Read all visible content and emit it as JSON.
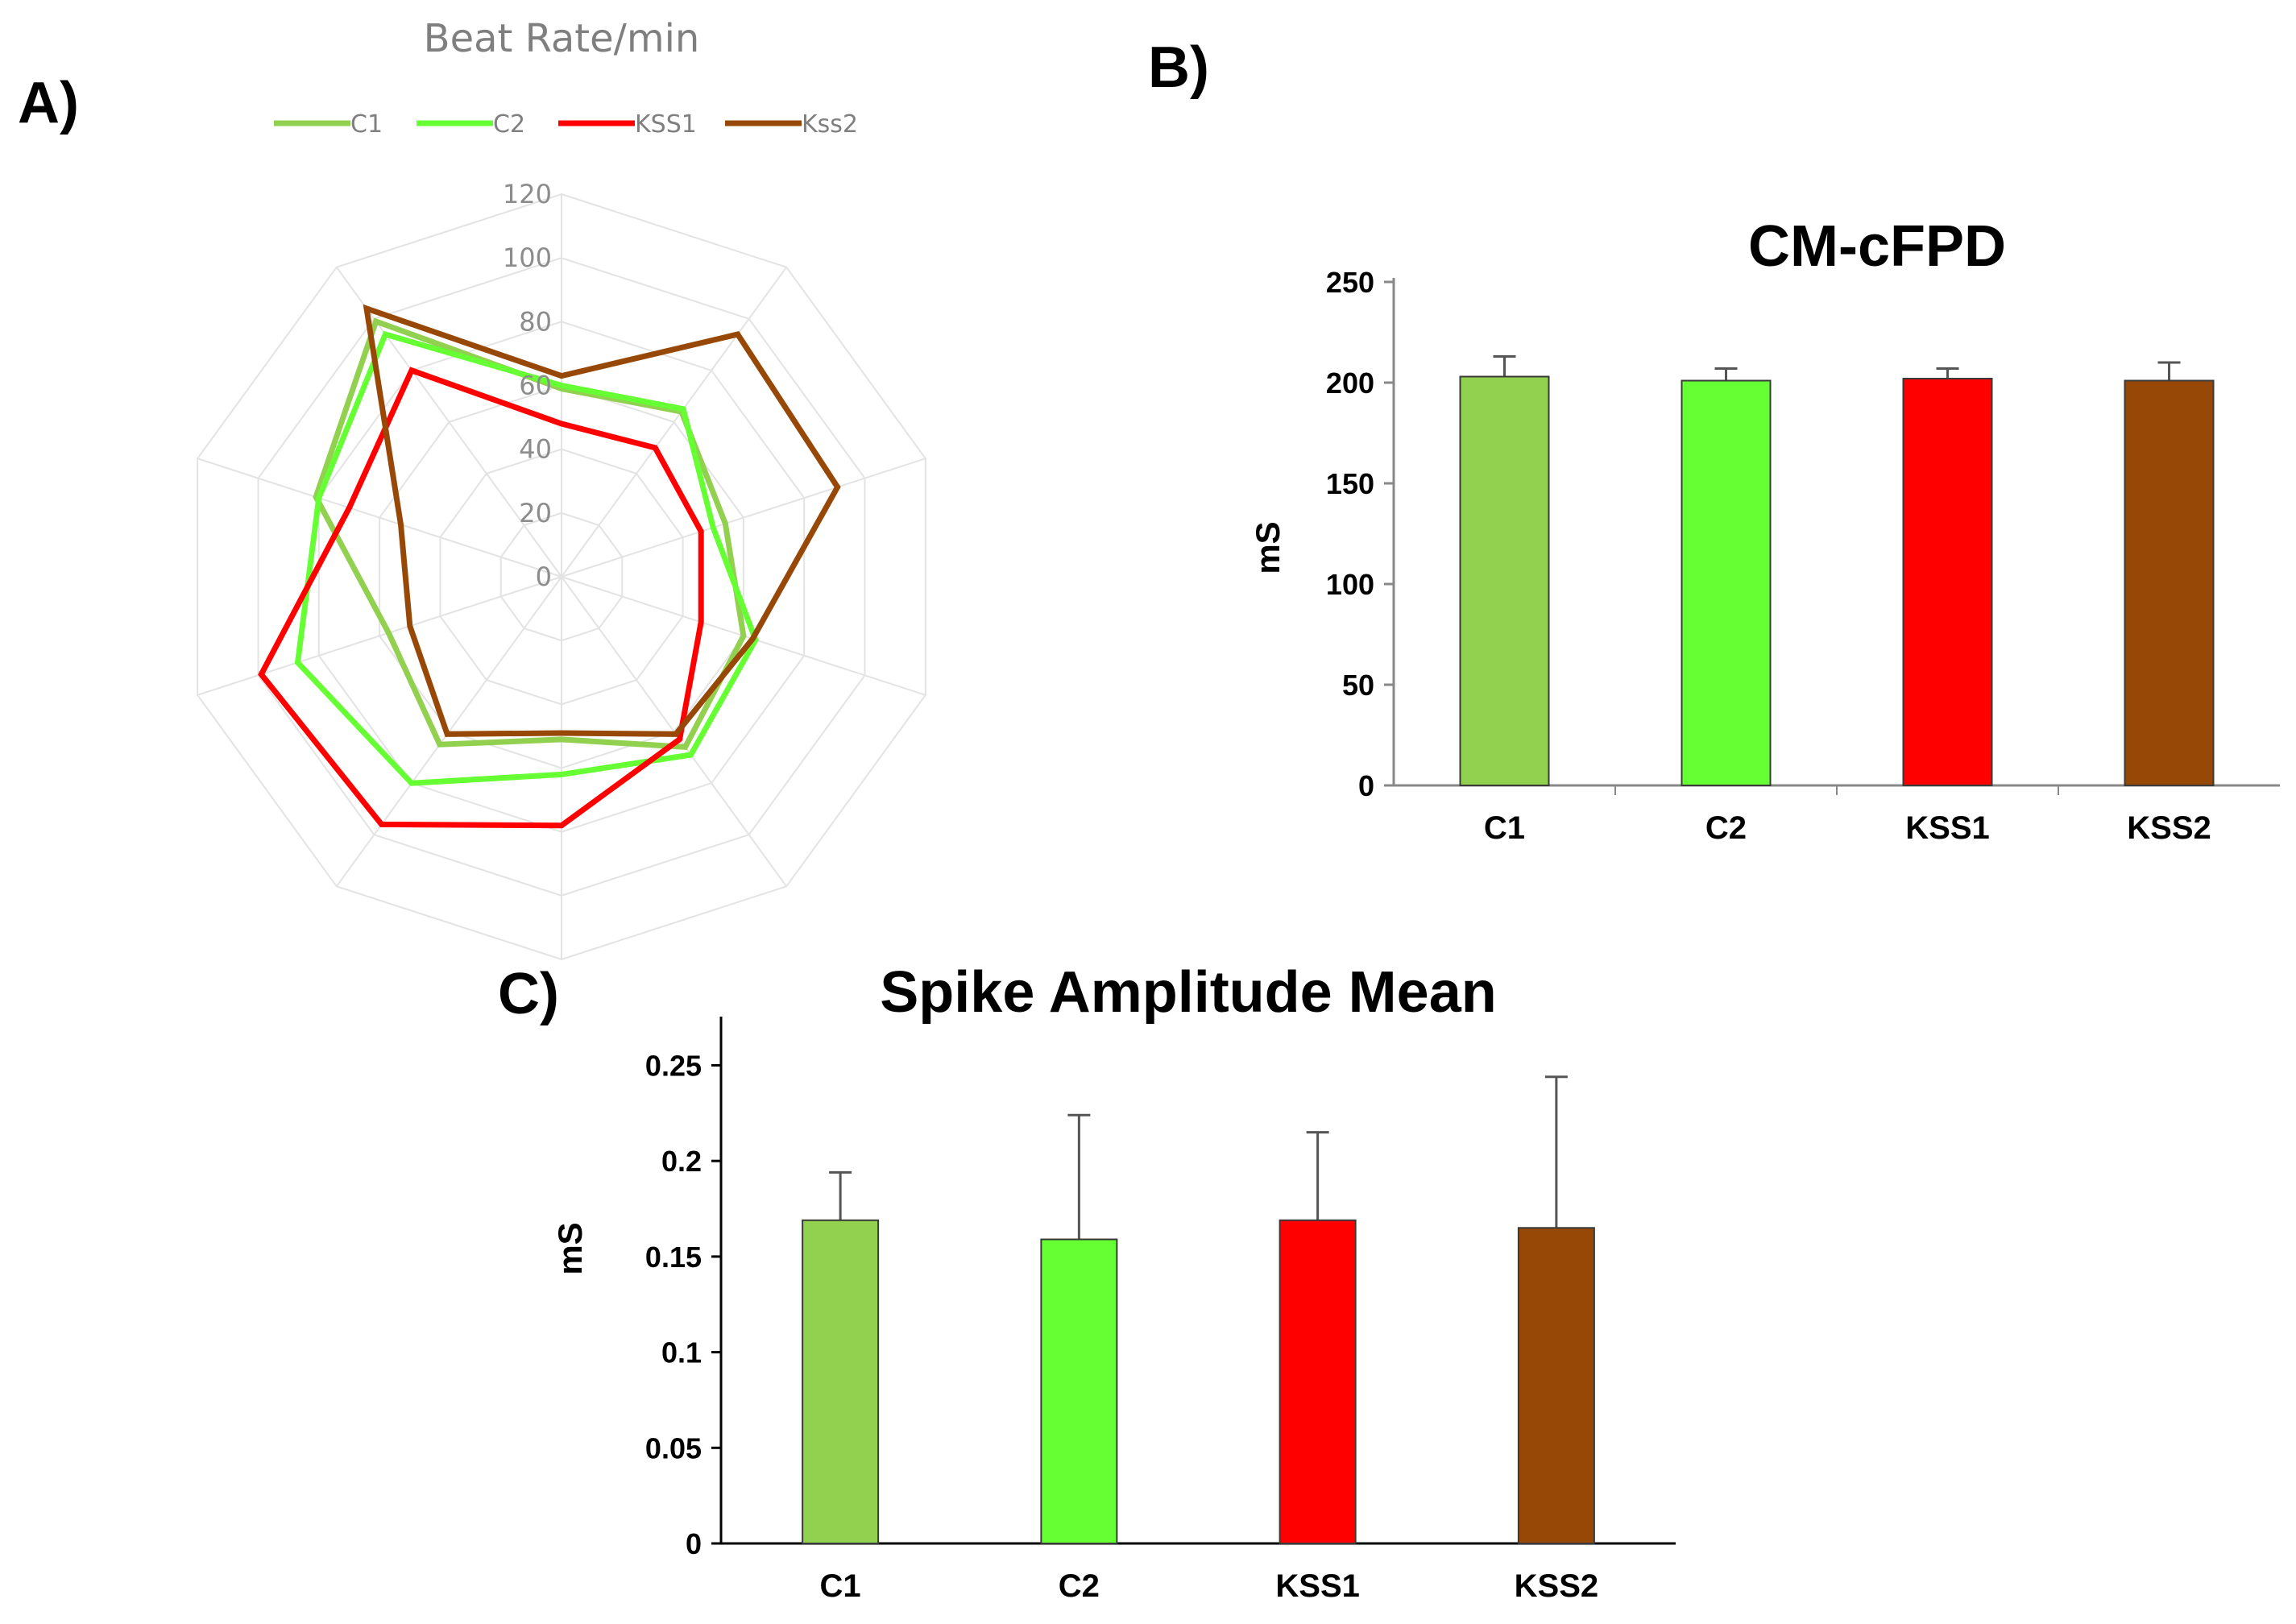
{
  "panels": {
    "a": "A)",
    "b": "B)",
    "c": "C)"
  },
  "chart_data": [
    {
      "type": "radar",
      "title": "Beat Rate/min",
      "rlim": [
        0,
        120
      ],
      "ticks": [
        0,
        20,
        40,
        60,
        80,
        100,
        120
      ],
      "tick_labels": [
        "0",
        "20",
        "40",
        "60",
        "80",
        "100",
        "120"
      ],
      "n_axes": 10,
      "legend": "top",
      "series": [
        {
          "name": "C1",
          "color": "#92D050",
          "values": [
            59,
            64,
            54,
            60,
            66,
            51,
            65,
            57,
            81,
            99
          ]
        },
        {
          "name": "C2",
          "color": "#66FF33",
          "values": [
            60,
            65,
            50,
            64,
            69,
            62,
            80,
            87,
            80,
            94
          ]
        },
        {
          "name": "KSS1",
          "color": "#FF0000",
          "values": [
            48,
            50,
            46,
            46,
            63,
            78,
            96,
            99,
            70,
            80
          ]
        },
        {
          "name": "Kss2",
          "color": "#974806",
          "values": [
            63,
            94,
            91,
            63,
            61,
            49,
            61,
            50,
            53,
            104
          ]
        }
      ]
    },
    {
      "type": "bar",
      "title": "CM-cFPD",
      "ylabel": "mS",
      "xlabel": "",
      "ylim": [
        0,
        250
      ],
      "yticks": [
        0,
        50,
        100,
        150,
        200,
        250
      ],
      "ytick_labels": [
        "0",
        "50",
        "100",
        "150",
        "200",
        "250"
      ],
      "categories": [
        "C1",
        "C2",
        "KSS1",
        "KSS2"
      ],
      "values": [
        203,
        201,
        202,
        201
      ],
      "errors": [
        10,
        6,
        5,
        9
      ],
      "colors": [
        "#92D050",
        "#66FF33",
        "#FF0000",
        "#974806"
      ]
    },
    {
      "type": "bar",
      "title": "Spike Amplitude Mean",
      "ylabel": "mS",
      "xlabel": "",
      "ylim": [
        0,
        0.27
      ],
      "yticks": [
        0,
        0.05,
        0.1,
        0.15,
        0.2,
        0.25
      ],
      "ytick_labels": [
        "0",
        "0.05",
        "0.1",
        "0.15",
        "0.2",
        "0.25"
      ],
      "categories": [
        "C1",
        "C2",
        "KSS1",
        "KSS2"
      ],
      "values": [
        0.169,
        0.159,
        0.169,
        0.165
      ],
      "errors": [
        0.025,
        0.065,
        0.046,
        0.079
      ],
      "colors": [
        "#92D050",
        "#66FF33",
        "#FF0000",
        "#974806"
      ]
    }
  ]
}
